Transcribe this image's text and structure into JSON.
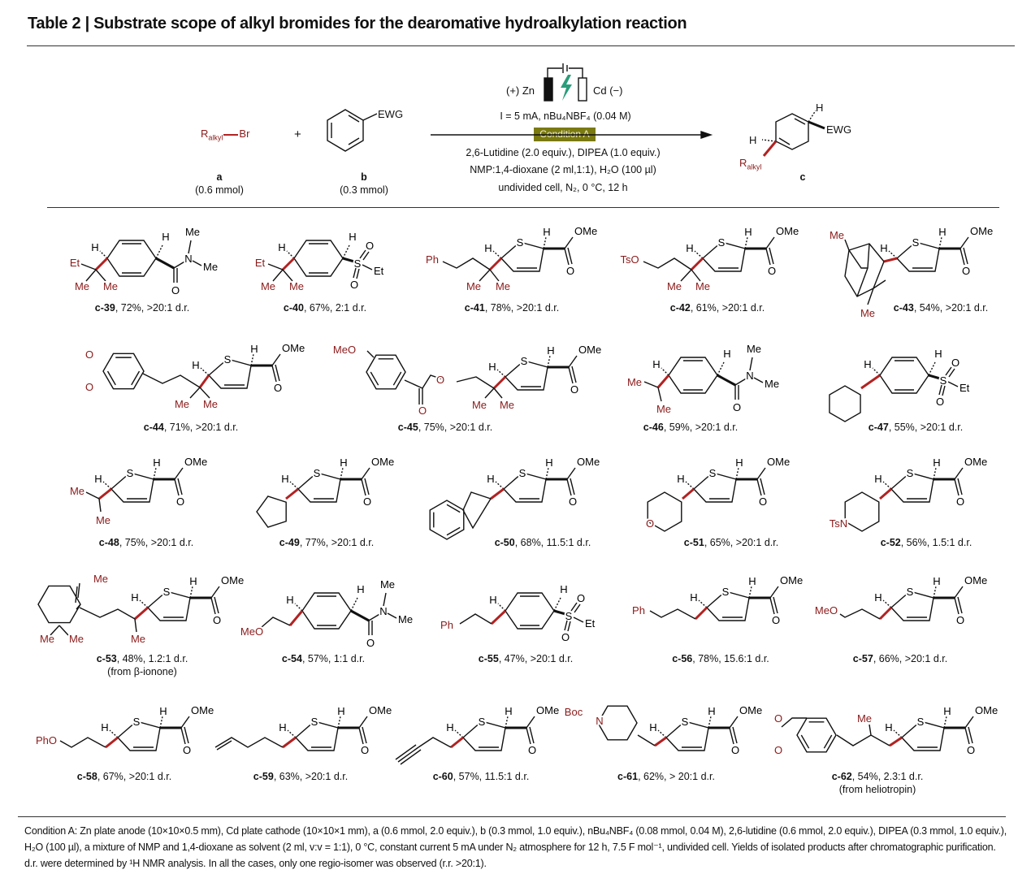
{
  "title": "Table 2 | Substrate scope of alkyl bromides for the dearomative hydroalkylation reaction",
  "scheme": {
    "reagent_a": "R",
    "reagent_a_sub": "alkyl",
    "reagent_a_br": "Br",
    "plus": "+",
    "ewg": "EWG",
    "a_label": "a",
    "a_amount": "(0.6 mmol)",
    "b_label": "b",
    "b_amount": "(0.3 mmol)",
    "anode": "(+) Zn",
    "cathode": "Cd (−)",
    "current": "I = 5 mA, nBu₄NBF₄ (0.04 M)",
    "condition": "Condition A",
    "line1": "2,6-Lutidine (2.0 equiv.), DIPEA (1.0 equiv.)",
    "line2": "NMP:1,4-dioxane (2 ml,1:1), H₂O (100 µl)",
    "line3": "undivided cell, N₂, 0 °C, 12 h",
    "product_h": "H",
    "product_h2": "H",
    "product_ewg": "EWG",
    "product_r": "R",
    "product_r_sub": "alkyl",
    "c_label": "c",
    "colors": {
      "condition_box": "#7a7a12",
      "bolt": "#2a9d7a",
      "alkyl_bond": "#b22222"
    }
  },
  "core_labels": {
    "S": "S",
    "H": "H",
    "OMe": "OMe",
    "O": "O",
    "N": "N",
    "Me": "Me",
    "Et": "Et"
  },
  "compounds": [
    {
      "id": "c-39",
      "result": ", 72%, >20:1 d.r.",
      "r_labels": [
        "Et",
        "Me",
        "Me"
      ]
    },
    {
      "id": "c-40",
      "result": ", 67%, 2:1 d.r.",
      "r_labels": [
        "Et",
        "Me",
        "Me"
      ]
    },
    {
      "id": "c-41",
      "result": ", 78%, >20:1 d.r.",
      "r_labels": [
        "Ph",
        "Me",
        "Me"
      ]
    },
    {
      "id": "c-42",
      "result": ", 61%, >20:1 d.r.",
      "r_labels": [
        "TsO",
        "Me",
        "Me"
      ]
    },
    {
      "id": "c-43",
      "result": ", 54%, >20:1 d.r.",
      "r_labels": [
        "Me",
        "Me"
      ]
    },
    {
      "id": "c-44",
      "result": ", 71%, >20:1 d.r.",
      "r_labels": [
        "O",
        "O",
        "Me",
        "Me"
      ]
    },
    {
      "id": "c-45",
      "result": ", 75%, >20:1 d.r.",
      "r_labels": [
        "MeO",
        "O",
        "O",
        "Me",
        "Me"
      ]
    },
    {
      "id": "c-46",
      "result": ", 59%, >20:1 d.r.",
      "r_labels": [
        "Me",
        "Me"
      ]
    },
    {
      "id": "c-47",
      "result": ", 55%, >20:1 d.r.",
      "r_labels": []
    },
    {
      "id": "c-48",
      "result": ", 75%, >20:1 d.r.",
      "r_labels": [
        "Me",
        "Me"
      ]
    },
    {
      "id": "c-49",
      "result": ", 77%, >20:1 d.r.",
      "r_labels": []
    },
    {
      "id": "c-50",
      "result": ", 68%, 11.5:1 d.r.",
      "r_labels": []
    },
    {
      "id": "c-51",
      "result": ", 65%, >20:1 d.r.",
      "r_labels": [
        "O"
      ]
    },
    {
      "id": "c-52",
      "result": ", 56%, 1.5:1 d.r.",
      "r_labels": [
        "TsN"
      ]
    },
    {
      "id": "c-53",
      "result": ", 48%, 1.2:1 d.r.",
      "note": "(from β-ionone)",
      "r_labels": [
        "Me",
        "Me",
        "Me",
        "Me"
      ]
    },
    {
      "id": "c-54",
      "result": ", 57%, 1:1 d.r.",
      "r_labels": [
        "MeO"
      ]
    },
    {
      "id": "c-55",
      "result": ", 47%, >20:1 d.r.",
      "r_labels": [
        "Ph"
      ]
    },
    {
      "id": "c-56",
      "result": ", 78%, 15.6:1 d.r.",
      "r_labels": [
        "Ph"
      ]
    },
    {
      "id": "c-57",
      "result": ", 66%, >20:1 d.r.",
      "r_labels": [
        "MeO"
      ]
    },
    {
      "id": "c-58",
      "result": ", 67%, >20:1 d.r.",
      "r_labels": [
        "PhO"
      ]
    },
    {
      "id": "c-59",
      "result": ", 63%, >20:1 d.r.",
      "r_labels": []
    },
    {
      "id": "c-60",
      "result": ", 57%, 11.5:1 d.r.",
      "r_labels": []
    },
    {
      "id": "c-61",
      "result": ", 62%, > 20:1 d.r.",
      "r_labels": [
        "Boc",
        "N"
      ]
    },
    {
      "id": "c-62",
      "result": ", 54%, 2.3:1 d.r.",
      "note": "(from heliotropin)",
      "r_labels": [
        "O",
        "O",
        "Me"
      ]
    }
  ],
  "footnote": "Condition A: Zn plate anode (10×10×0.5 mm), Cd plate cathode (10×10×1 mm), a (0.6 mmol, 2.0 equiv.), b (0.3 mmol, 1.0 equiv.), nBu₄NBF₄ (0.08 mmol, 0.04 M), 2,6-lutidine (0.6 mmol, 2.0 equiv.), DIPEA (0.3 mmol, 1.0 equiv.), H₂O (100 µl), a mixture of NMP and 1,4-dioxane as solvent (2 ml, v:v = 1:1), 0 °C, constant current 5 mA under N₂ atmosphere for 12 h, 7.5 F mol⁻¹, undivided cell. Yields of isolated products after chromatographic purification. d.r. were determined by ¹H NMR analysis. In all the cases, only one regio-isomer was observed (r.r. >20:1)."
}
